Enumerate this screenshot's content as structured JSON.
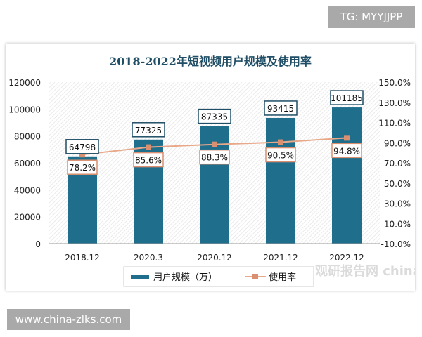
{
  "overlay": {
    "tg_label": "TG: MYYJJPP",
    "site_label": "www.china-zlks.com",
    "watermark": "观研报告网 chinal"
  },
  "chart_data": {
    "type": "bar+line",
    "title": "2018-2022年短视频用户规模及使用率",
    "categories": [
      "2018.12",
      "2020.3",
      "2020.12",
      "2021.12",
      "2022.12"
    ],
    "series": [
      {
        "name": "用户规模（万）",
        "type": "bar",
        "axis": "left",
        "color": "#1f6e8c",
        "values": [
          64798,
          77325,
          87335,
          93415,
          101185
        ],
        "labels": [
          "64798",
          "77325",
          "87335",
          "93415",
          "101185"
        ]
      },
      {
        "name": "使用率",
        "type": "line",
        "axis": "right",
        "color": "#e8a88a",
        "values": [
          78.2,
          85.6,
          88.3,
          90.5,
          94.8
        ],
        "labels": [
          "78.2%",
          "85.6%",
          "88.3%",
          "90.5%",
          "94.8%"
        ]
      }
    ],
    "yleft": {
      "ylim": [
        0,
        120000
      ],
      "ticks": [
        "0",
        "20000",
        "40000",
        "60000",
        "80000",
        "100000",
        "120000"
      ]
    },
    "yright": {
      "ylim": [
        -10,
        150
      ],
      "ticks": [
        "-10.0%",
        "10.0%",
        "30.0%",
        "50.0%",
        "70.0%",
        "90.0%",
        "110.0%",
        "130.0%",
        "150.0%"
      ]
    },
    "legend": "bottom"
  }
}
